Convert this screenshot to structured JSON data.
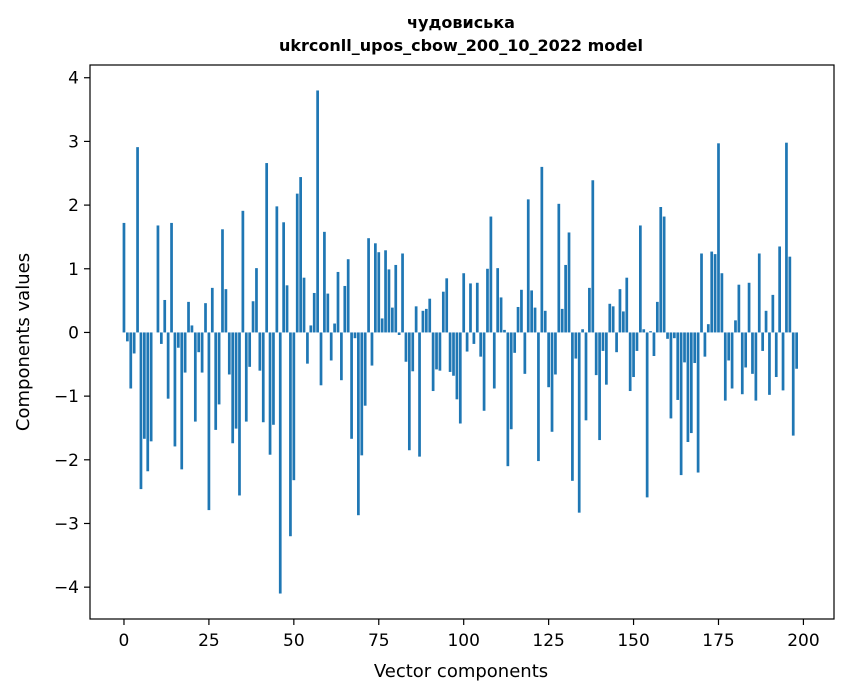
{
  "chart_data": {
    "type": "bar",
    "title": "чудовиська",
    "subtitle": "ukrconll_upos_cbow_200_10_2022 model",
    "xlabel": "Vector components",
    "ylabel": "Components values",
    "xlim": [
      -10,
      209
    ],
    "ylim": [
      -4.5,
      4.2
    ],
    "xticks": [
      0,
      25,
      50,
      75,
      100,
      125,
      150,
      175,
      200
    ],
    "yticks": [
      -4,
      -3,
      -2,
      -1,
      0,
      1,
      2,
      3,
      4
    ],
    "xtick_labels": [
      "0",
      "25",
      "50",
      "75",
      "100",
      "125",
      "150",
      "175",
      "200"
    ],
    "ytick_labels": [
      "−4",
      "−3",
      "−2",
      "−1",
      "0",
      "1",
      "2",
      "3",
      "4"
    ],
    "color": "#1f77b4",
    "values": [
      1.72,
      -0.14,
      -0.88,
      -0.33,
      2.91,
      -2.46,
      -1.67,
      -2.18,
      -1.71,
      0.0,
      1.68,
      -0.18,
      0.51,
      -1.04,
      1.72,
      -1.79,
      -0.24,
      -2.15,
      -0.63,
      0.48,
      0.11,
      -1.4,
      -0.31,
      -0.63,
      0.46,
      -2.79,
      0.7,
      -1.53,
      -1.13,
      1.62,
      0.68,
      -0.66,
      -1.74,
      -1.51,
      -2.56,
      1.91,
      -1.4,
      -0.54,
      0.49,
      1.01,
      -0.6,
      -1.41,
      2.66,
      -1.92,
      -1.45,
      1.98,
      -4.1,
      1.73,
      0.74,
      -3.2,
      -2.32,
      2.18,
      2.44,
      0.86,
      -0.49,
      0.11,
      0.62,
      3.8,
      -0.83,
      1.58,
      0.61,
      -0.44,
      0.14,
      0.95,
      -0.75,
      0.73,
      1.15,
      -1.67,
      -0.09,
      -2.87,
      -1.93,
      -1.15,
      1.48,
      -0.52,
      1.4,
      1.26,
      0.22,
      1.29,
      0.99,
      0.39,
      1.06,
      -0.04,
      1.24,
      -0.46,
      -1.85,
      -0.61,
      0.41,
      -1.95,
      0.34,
      0.37,
      0.53,
      -0.92,
      -0.58,
      -0.6,
      0.64,
      0.85,
      -0.62,
      -0.68,
      -1.05,
      -1.43,
      0.93,
      -0.3,
      0.77,
      -0.18,
      0.78,
      -0.38,
      -1.23,
      1.0,
      1.82,
      -0.88,
      1.01,
      0.55,
      0.04,
      -2.1,
      -1.52,
      -0.32,
      0.4,
      0.67,
      -0.65,
      2.09,
      0.66,
      0.39,
      -2.02,
      2.6,
      0.34,
      -0.86,
      -1.56,
      -0.66,
      2.02,
      0.37,
      1.06,
      1.57,
      -2.33,
      -0.41,
      -2.83,
      0.05,
      -1.38,
      0.7,
      2.39,
      -0.67,
      -1.69,
      -0.29,
      -0.82,
      0.45,
      0.41,
      -0.31,
      0.68,
      0.33,
      0.86,
      -0.92,
      -0.7,
      -0.29,
      1.68,
      0.05,
      -2.59,
      0.02,
      -0.37,
      0.48,
      1.97,
      1.82,
      -0.1,
      -1.35,
      -0.09,
      -1.06,
      -2.24,
      -0.47,
      -1.72,
      -1.58,
      -0.48,
      -2.2,
      1.24,
      -0.38,
      0.13,
      1.27,
      1.23,
      2.97,
      0.93,
      -1.07,
      -0.44,
      -0.88,
      0.19,
      0.75,
      -0.97,
      -0.55,
      0.78,
      -0.65,
      -1.07,
      1.24,
      -0.29,
      0.34,
      -0.98,
      0.59,
      -0.7,
      1.35,
      -0.91,
      2.98,
      1.19,
      -1.62,
      -0.57
    ]
  }
}
